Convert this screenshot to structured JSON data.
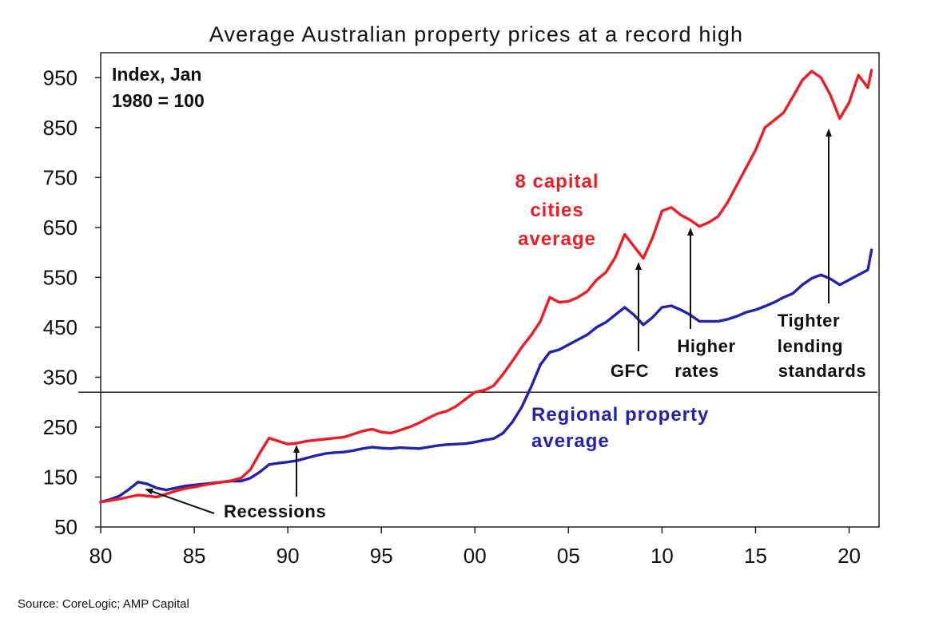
{
  "chart_data": {
    "type": "line",
    "title": "Average Australian property prices at a record high",
    "index_note_line1": "Index, Jan",
    "index_note_line2": "1980 = 100",
    "xlabel": "",
    "ylabel": "",
    "xlim": [
      1980,
      2021.6
    ],
    "ylim": [
      50,
      1000
    ],
    "x_ticks": [
      1980,
      1985,
      1990,
      1995,
      2000,
      2005,
      2010,
      2015,
      2020
    ],
    "x_tick_labels": [
      "80",
      "85",
      "90",
      "95",
      "00",
      "05",
      "10",
      "15",
      "20"
    ],
    "y_ticks": [
      50,
      150,
      250,
      350,
      450,
      550,
      650,
      750,
      850,
      950
    ],
    "y_tick_labels": [
      "50",
      "150",
      "250",
      "350",
      "450",
      "550",
      "650",
      "750",
      "850",
      "950"
    ],
    "reference_line": 320,
    "grid": false,
    "legend": "inline labels",
    "series": [
      {
        "name": "8 capital cities average",
        "label_lines": [
          "8 capital",
          "cities",
          "average"
        ],
        "color": "#ee1c25",
        "x": [
          1980.0,
          1980.5,
          1981.0,
          1981.5,
          1982.0,
          1982.5,
          1983.0,
          1983.5,
          1984.0,
          1984.5,
          1985.0,
          1985.5,
          1986.0,
          1986.5,
          1987.0,
          1987.5,
          1988.0,
          1988.5,
          1989.0,
          1989.5,
          1990.0,
          1990.5,
          1991.0,
          1991.5,
          1992.0,
          1992.5,
          1993.0,
          1993.5,
          1994.0,
          1994.5,
          1995.0,
          1995.5,
          1996.0,
          1996.5,
          1997.0,
          1997.5,
          1998.0,
          1998.5,
          1999.0,
          1999.5,
          2000.0,
          2000.5,
          2001.0,
          2001.5,
          2002.0,
          2002.5,
          2003.0,
          2003.5,
          2004.0,
          2004.5,
          2005.0,
          2005.5,
          2006.0,
          2006.5,
          2007.0,
          2007.5,
          2008.0,
          2008.5,
          2009.0,
          2009.5,
          2010.0,
          2010.5,
          2011.0,
          2011.5,
          2012.0,
          2012.5,
          2013.0,
          2013.5,
          2014.0,
          2014.5,
          2015.0,
          2015.5,
          2016.0,
          2016.5,
          2017.0,
          2017.5,
          2018.0,
          2018.5,
          2019.0,
          2019.5,
          2020.0,
          2020.5,
          2021.0,
          2021.2
        ],
        "values": [
          100,
          103,
          106,
          110,
          114,
          112,
          110,
          116,
          122,
          127,
          130,
          134,
          137,
          140,
          143,
          148,
          165,
          198,
          228,
          222,
          216,
          218,
          222,
          224,
          226,
          228,
          230,
          236,
          242,
          246,
          240,
          238,
          244,
          250,
          258,
          268,
          277,
          282,
          292,
          306,
          320,
          324,
          333,
          356,
          382,
          410,
          434,
          462,
          510,
          500,
          502,
          510,
          522,
          545,
          560,
          590,
          636,
          612,
          588,
          630,
          683,
          690,
          675,
          665,
          652,
          660,
          672,
          700,
          735,
          770,
          805,
          850,
          865,
          880,
          912,
          945,
          963,
          950,
          915,
          868,
          900,
          955,
          930,
          965
        ]
      },
      {
        "name": "Regional property average",
        "label_lines": [
          "Regional property",
          "average"
        ],
        "color": "#2222aa",
        "x": [
          1980.0,
          1980.5,
          1981.0,
          1981.5,
          1982.0,
          1982.5,
          1983.0,
          1983.5,
          1984.0,
          1984.5,
          1985.0,
          1985.5,
          1986.0,
          1986.5,
          1987.0,
          1987.5,
          1988.0,
          1988.5,
          1989.0,
          1989.5,
          1990.0,
          1990.5,
          1991.0,
          1991.5,
          1992.0,
          1992.5,
          1993.0,
          1993.5,
          1994.0,
          1994.5,
          1995.0,
          1995.5,
          1996.0,
          1996.5,
          1997.0,
          1997.5,
          1998.0,
          1998.5,
          1999.0,
          1999.5,
          2000.0,
          2000.5,
          2001.0,
          2001.5,
          2002.0,
          2002.5,
          2003.0,
          2003.5,
          2004.0,
          2004.5,
          2005.0,
          2005.5,
          2006.0,
          2006.5,
          2007.0,
          2007.5,
          2008.0,
          2008.5,
          2009.0,
          2009.5,
          2010.0,
          2010.5,
          2011.0,
          2011.5,
          2012.0,
          2012.5,
          2013.0,
          2013.5,
          2014.0,
          2014.5,
          2015.0,
          2015.5,
          2016.0,
          2016.5,
          2017.0,
          2017.5,
          2018.0,
          2018.5,
          2019.0,
          2019.5,
          2020.0,
          2020.5,
          2021.0,
          2021.2
        ],
        "values": [
          100,
          105,
          112,
          125,
          140,
          136,
          128,
          124,
          128,
          132,
          134,
          136,
          138,
          140,
          142,
          142,
          148,
          160,
          175,
          178,
          180,
          183,
          188,
          193,
          197,
          199,
          200,
          203,
          207,
          210,
          208,
          207,
          209,
          208,
          207,
          210,
          213,
          215,
          216,
          217,
          220,
          224,
          227,
          238,
          260,
          290,
          330,
          375,
          400,
          405,
          415,
          425,
          435,
          450,
          460,
          475,
          490,
          475,
          455,
          470,
          490,
          493,
          485,
          475,
          462,
          462,
          462,
          466,
          472,
          480,
          485,
          492,
          500,
          510,
          518,
          535,
          548,
          555,
          547,
          535,
          545,
          555,
          565,
          605
        ]
      }
    ],
    "annotations": [
      {
        "text": "Recessions"
      },
      {
        "text": "GFC"
      },
      {
        "lines": [
          "Higher",
          "rates"
        ]
      },
      {
        "lines": [
          "Tighter",
          "lending",
          "standards"
        ]
      }
    ],
    "source": "Source: CoreLogic; AMP Capital"
  }
}
